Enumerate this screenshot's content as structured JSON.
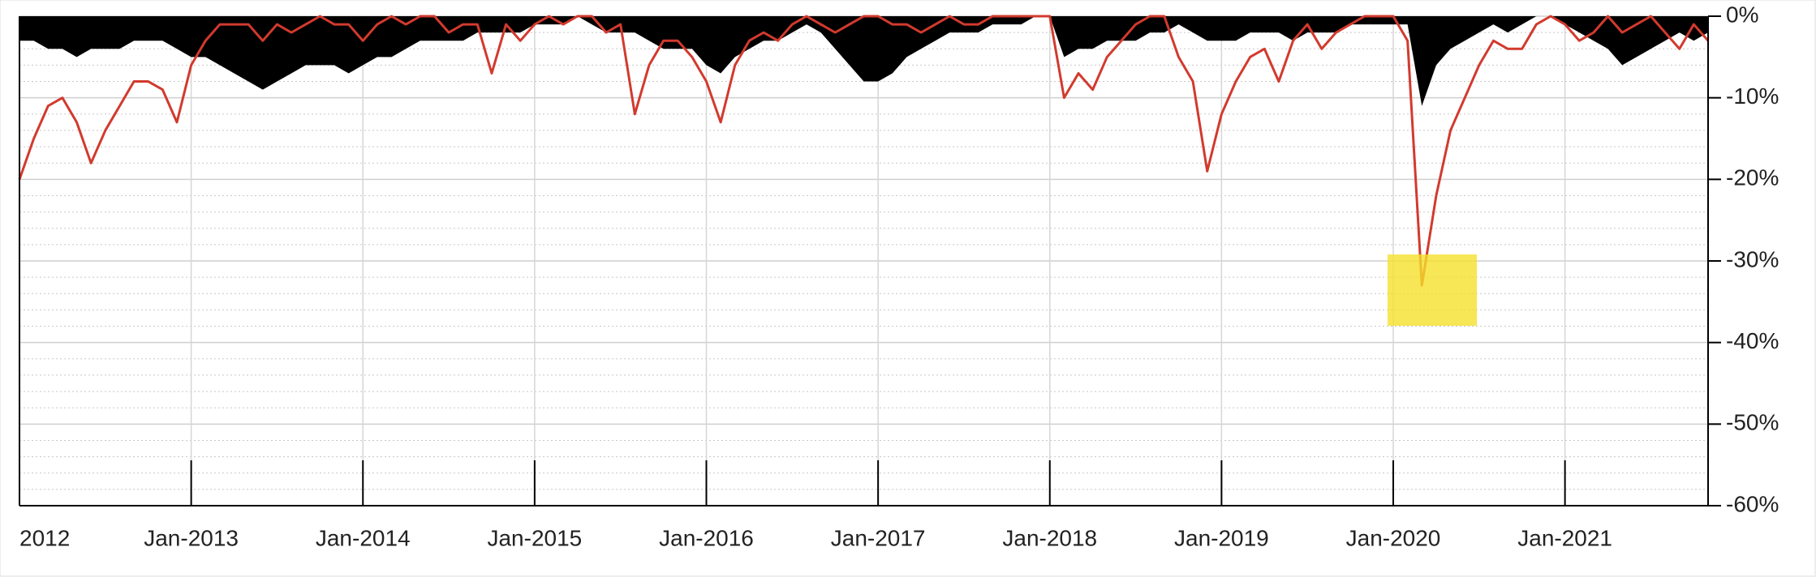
{
  "chart_data": {
    "type": "line",
    "x": [
      "2012-01",
      "2012-02",
      "2012-03",
      "2012-04",
      "2012-05",
      "2012-06",
      "2012-07",
      "2012-08",
      "2012-09",
      "2012-10",
      "2012-11",
      "2012-12",
      "2013-01",
      "2013-02",
      "2013-03",
      "2013-04",
      "2013-05",
      "2013-06",
      "2013-07",
      "2013-08",
      "2013-09",
      "2013-10",
      "2013-11",
      "2013-12",
      "2014-01",
      "2014-02",
      "2014-03",
      "2014-04",
      "2014-05",
      "2014-06",
      "2014-07",
      "2014-08",
      "2014-09",
      "2014-10",
      "2014-11",
      "2014-12",
      "2015-01",
      "2015-02",
      "2015-03",
      "2015-04",
      "2015-05",
      "2015-06",
      "2015-07",
      "2015-08",
      "2015-09",
      "2015-10",
      "2015-11",
      "2015-12",
      "2016-01",
      "2016-02",
      "2016-03",
      "2016-04",
      "2016-05",
      "2016-06",
      "2016-07",
      "2016-08",
      "2016-09",
      "2016-10",
      "2016-11",
      "2016-12",
      "2017-01",
      "2017-02",
      "2017-03",
      "2017-04",
      "2017-05",
      "2017-06",
      "2017-07",
      "2017-08",
      "2017-09",
      "2017-10",
      "2017-11",
      "2017-12",
      "2018-01",
      "2018-02",
      "2018-03",
      "2018-04",
      "2018-05",
      "2018-06",
      "2018-07",
      "2018-08",
      "2018-09",
      "2018-10",
      "2018-11",
      "2018-12",
      "2019-01",
      "2019-02",
      "2019-03",
      "2019-04",
      "2019-05",
      "2019-06",
      "2019-07",
      "2019-08",
      "2019-09",
      "2019-10",
      "2019-11",
      "2019-12",
      "2020-01",
      "2020-02",
      "2020-03",
      "2020-04",
      "2020-05",
      "2020-06",
      "2020-07",
      "2020-08",
      "2020-09",
      "2020-10",
      "2020-11",
      "2020-12",
      "2021-01",
      "2021-02",
      "2021-03",
      "2021-04",
      "2021-05",
      "2021-06",
      "2021-07",
      "2021-08",
      "2021-09",
      "2021-10",
      "2021-11"
    ],
    "series": [
      {
        "type": "area",
        "color": "#000000",
        "values": [
          -3,
          -3,
          -4,
          -4,
          -5,
          -4,
          -4,
          -4,
          -3,
          -3,
          -3,
          -4,
          -5,
          -5,
          -6,
          -7,
          -8,
          -9,
          -8,
          -7,
          -6,
          -6,
          -6,
          -7,
          -6,
          -5,
          -5,
          -4,
          -3,
          -3,
          -3,
          -3,
          -2,
          -2,
          -2,
          -2,
          -1,
          -1,
          -1,
          0,
          -1,
          -2,
          -2,
          -2,
          -3,
          -4,
          -4,
          -4,
          -6,
          -7,
          -5,
          -4,
          -3,
          -3,
          -2,
          -1,
          -2,
          -4,
          -6,
          -8,
          -8,
          -7,
          -5,
          -4,
          -3,
          -2,
          -2,
          -2,
          -1,
          -1,
          -1,
          0,
          0,
          -5,
          -4,
          -4,
          -3,
          -3,
          -3,
          -2,
          -2,
          -1,
          -2,
          -3,
          -3,
          -3,
          -2,
          -2,
          -2,
          -3,
          -2,
          -2,
          -2,
          -1,
          -1,
          -1,
          -1,
          -1,
          -11,
          -6,
          -4,
          -3,
          -2,
          -1,
          -2,
          -1,
          0,
          0,
          -1,
          -2,
          -3,
          -4,
          -6,
          -5,
          -4,
          -3,
          -2,
          -3,
          -2
        ]
      },
      {
        "type": "line",
        "color": "#d23a2e",
        "values": [
          -20,
          -15,
          -11,
          -10,
          -13,
          -18,
          -14,
          -11,
          -8,
          -8,
          -9,
          -13,
          -6,
          -3,
          -1,
          -1,
          -1,
          -3,
          -1,
          -2,
          -1,
          0,
          -1,
          -1,
          -3,
          -1,
          0,
          -1,
          0,
          0,
          -2,
          -1,
          -1,
          -7,
          -1,
          -3,
          -1,
          0,
          -1,
          0,
          0,
          -2,
          -1,
          -12,
          -6,
          -3,
          -3,
          -5,
          -8,
          -13,
          -6,
          -3,
          -2,
          -3,
          -1,
          0,
          -1,
          -2,
          -1,
          0,
          0,
          -1,
          -1,
          -2,
          -1,
          0,
          -1,
          -1,
          0,
          0,
          0,
          0,
          0,
          -10,
          -7,
          -9,
          -5,
          -3,
          -1,
          0,
          0,
          -5,
          -8,
          -19,
          -12,
          -8,
          -5,
          -4,
          -8,
          -3,
          -1,
          -4,
          -2,
          -1,
          0,
          0,
          0,
          -3,
          -33,
          -22,
          -14,
          -10,
          -6,
          -3,
          -4,
          -4,
          -1,
          0,
          -1,
          -3,
          -2,
          0,
          -2,
          -1,
          0,
          -2,
          -4,
          -1,
          -3
        ]
      }
    ],
    "xlim": [
      "2012-01",
      "2021-11"
    ],
    "xticks": [
      {
        "value": "2012-01",
        "label": "2012"
      },
      {
        "value": "2013-01",
        "label": "Jan-2013"
      },
      {
        "value": "2014-01",
        "label": "Jan-2014"
      },
      {
        "value": "2015-01",
        "label": "Jan-2015"
      },
      {
        "value": "2016-01",
        "label": "Jan-2016"
      },
      {
        "value": "2017-01",
        "label": "Jan-2017"
      },
      {
        "value": "2018-01",
        "label": "Jan-2018"
      },
      {
        "value": "2019-01",
        "label": "Jan-2019"
      },
      {
        "value": "2020-01",
        "label": "Jan-2020"
      },
      {
        "value": "2021-01",
        "label": "Jan-2021"
      }
    ],
    "ylim": [
      -60,
      0
    ],
    "yticks": [
      {
        "value": 0,
        "label": "0%"
      },
      {
        "value": -10,
        "label": "-10%"
      },
      {
        "value": -20,
        "label": "-20%"
      },
      {
        "value": -30,
        "label": "-30%"
      },
      {
        "value": -40,
        "label": "-40%"
      },
      {
        "value": -50,
        "label": "-50%"
      },
      {
        "value": -60,
        "label": "-60%"
      }
    ],
    "grid": true,
    "minor_grid": true
  }
}
